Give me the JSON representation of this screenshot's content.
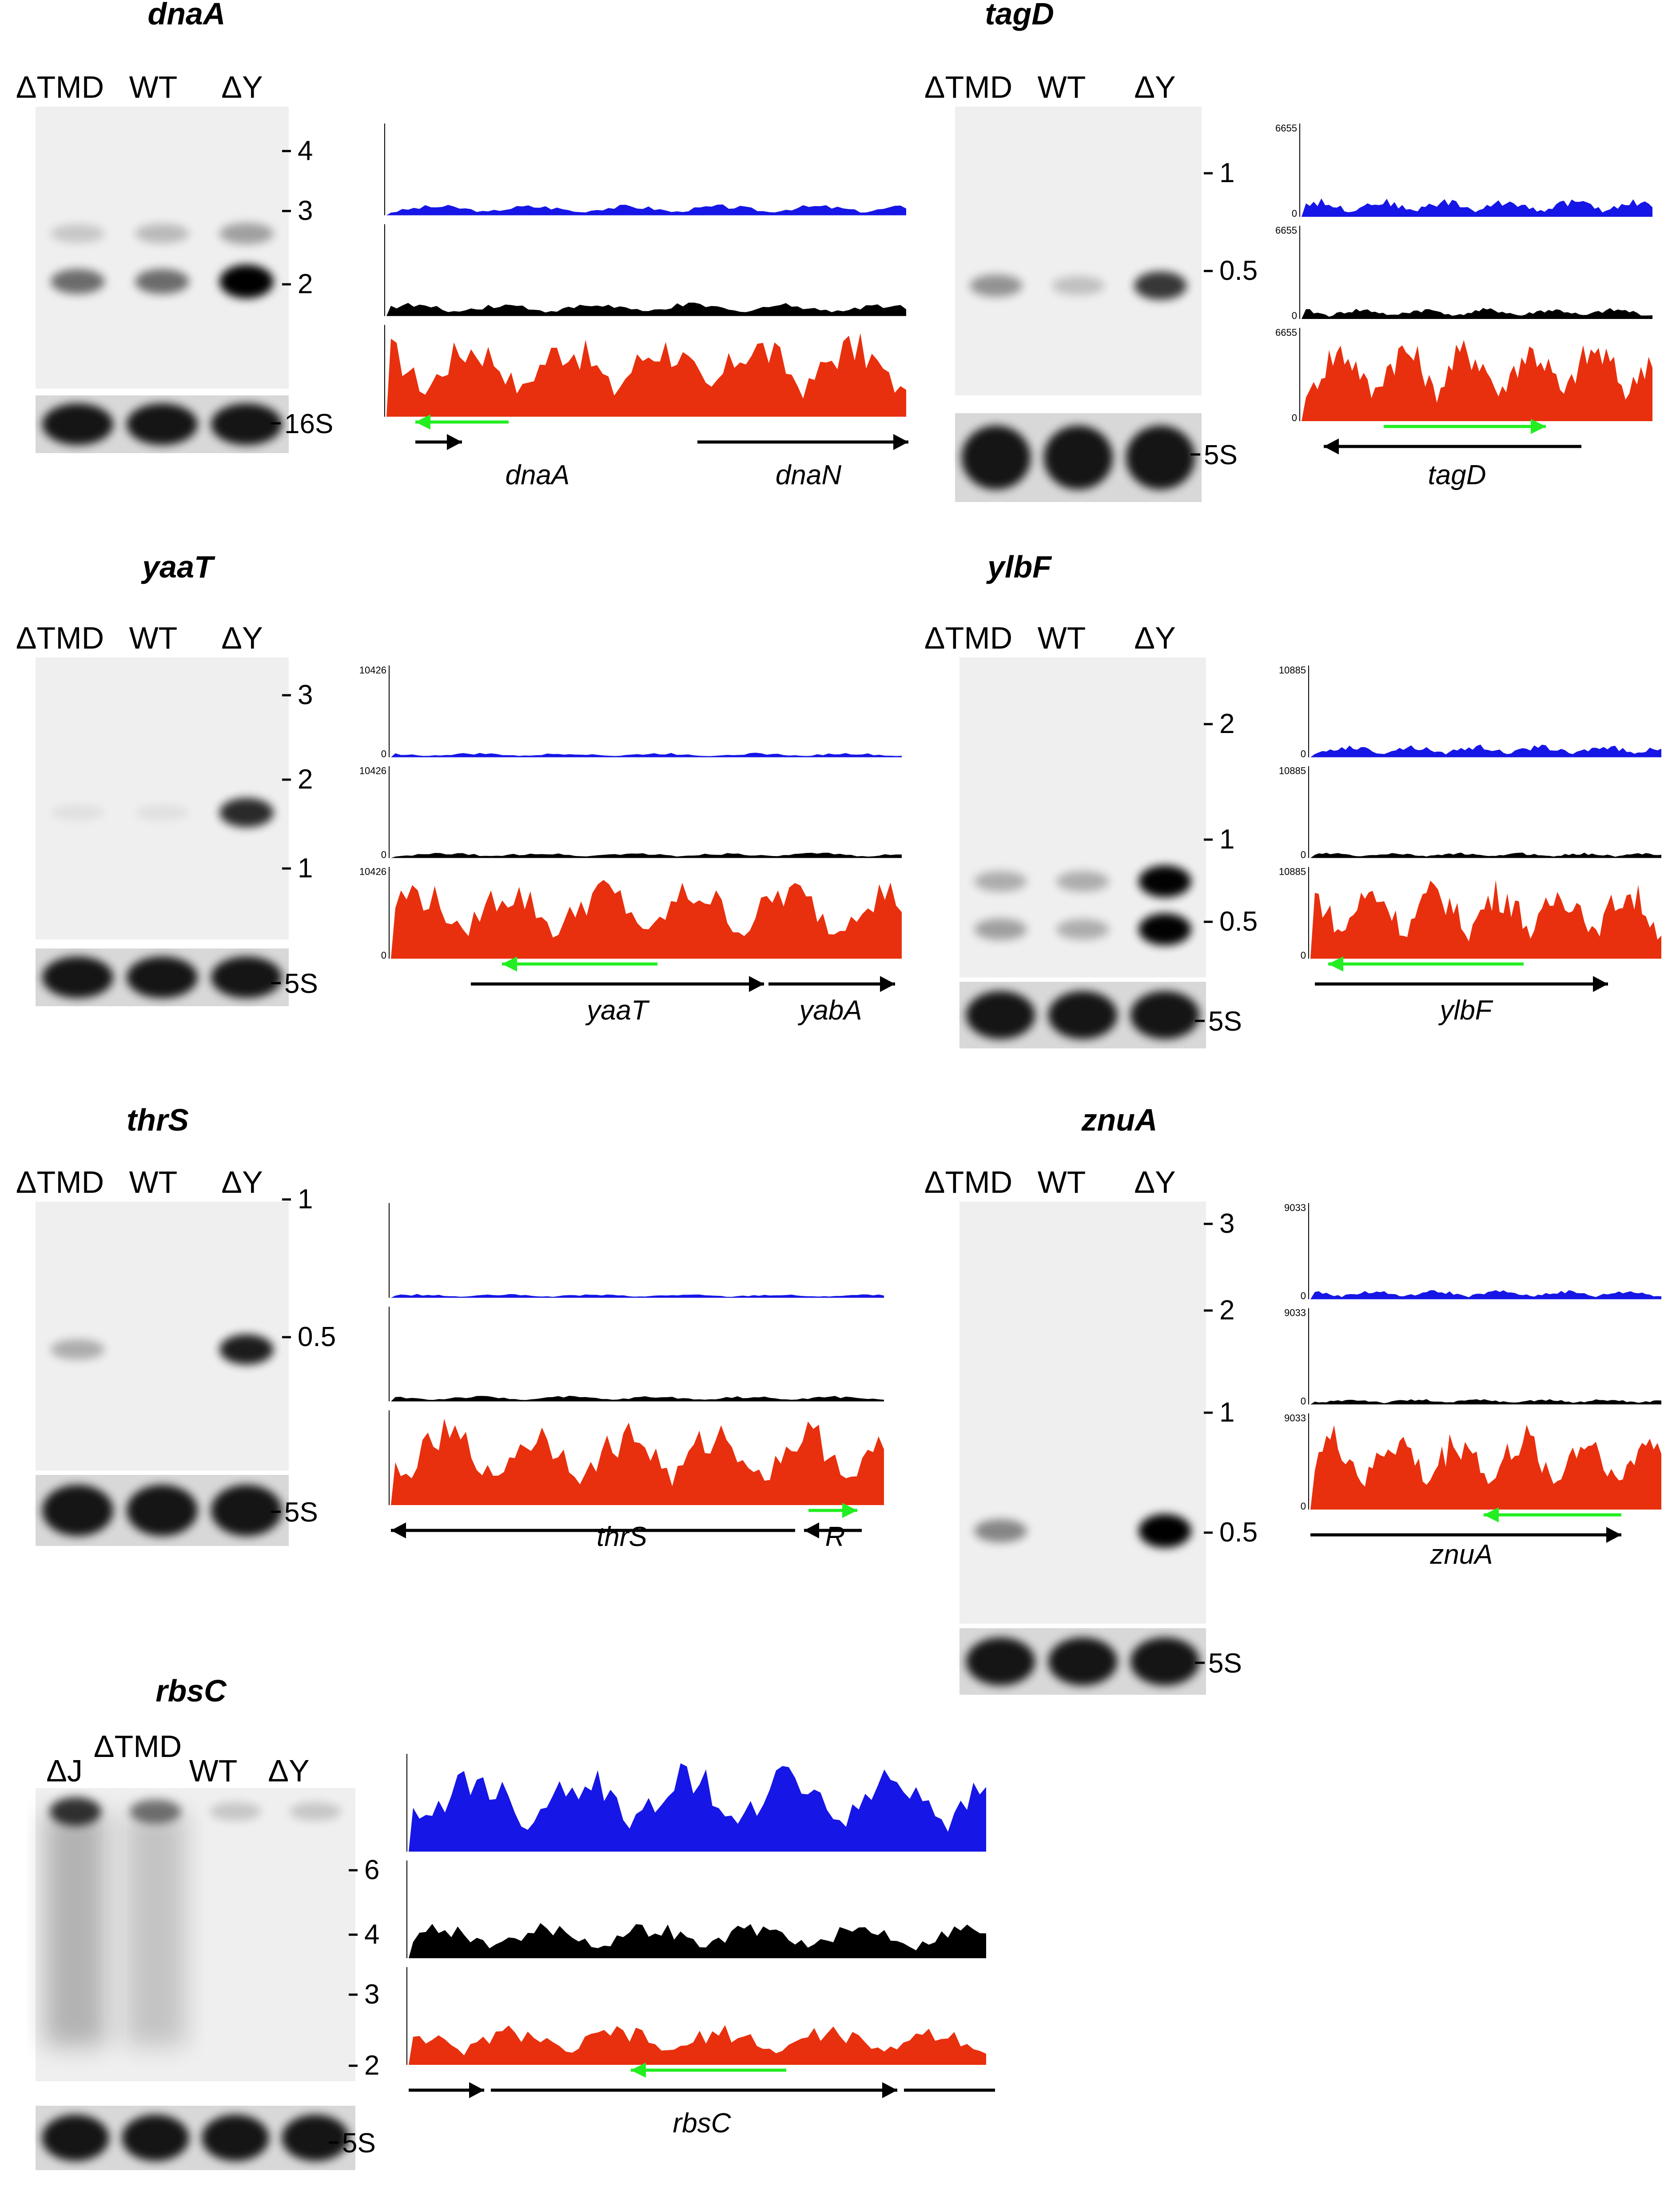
{
  "colors": {
    "track_1": "#1616e6",
    "track_2": "#000000",
    "track_3": "#e8300e",
    "arrow_green": "#22ee22",
    "arrow_black": "#000000"
  },
  "panels": [
    {
      "id": "dnaA",
      "title": "dnaA",
      "lanes": [
        "ΔTMD",
        "WT",
        "ΔY"
      ],
      "markers": [
        "4",
        "3",
        "2"
      ],
      "control": "16S",
      "scale_max": "",
      "scale_zero": "",
      "genes": [
        "dnaA",
        "dnaN"
      ],
      "coverage_max": [
        0.12,
        0.15,
        0.95
      ]
    },
    {
      "id": "tagD",
      "title": "tagD",
      "lanes": [
        "ΔTMD",
        "WT",
        "ΔY"
      ],
      "markers": [
        "1",
        "0.5"
      ],
      "control": "5S",
      "scale_max": "6655",
      "scale_zero": "0",
      "genes": [
        "tagD"
      ],
      "coverage_max": [
        0.2,
        0.12,
        0.95
      ]
    },
    {
      "id": "yaaT",
      "title": "yaaT",
      "lanes": [
        "ΔTMD",
        "WT",
        "ΔY"
      ],
      "markers": [
        "3",
        "2",
        "1"
      ],
      "control": "5S",
      "scale_max": "10426",
      "scale_zero": "0",
      "genes": [
        "yaaT",
        "yabA"
      ],
      "coverage_max": [
        0.05,
        0.06,
        0.92
      ]
    },
    {
      "id": "ylbF",
      "title": "ylbF",
      "lanes": [
        "ΔTMD",
        "WT",
        "ΔY"
      ],
      "markers": [
        "2",
        "1",
        "0.5"
      ],
      "control": "5S",
      "scale_max": "10885",
      "scale_zero": "0",
      "genes": [
        "ylbF"
      ],
      "coverage_max": [
        0.14,
        0.06,
        0.9
      ]
    },
    {
      "id": "thrS",
      "title": "thrS",
      "lanes": [
        "ΔTMD",
        "WT",
        "ΔY"
      ],
      "markers": [
        "1",
        "0.5"
      ],
      "control": "5S",
      "scale_max": "",
      "scale_zero": "",
      "genes": [
        "thrS",
        "R"
      ],
      "coverage_max": [
        0.04,
        0.06,
        0.92
      ]
    },
    {
      "id": "znuA",
      "title": "znuA",
      "lanes": [
        "ΔTMD",
        "WT",
        "ΔY"
      ],
      "markers": [
        "3",
        "2",
        "1",
        "0.5"
      ],
      "control": "5S",
      "scale_max": "9033",
      "scale_zero": "0",
      "genes": [
        "znuA"
      ],
      "coverage_max": [
        0.1,
        0.06,
        0.9
      ]
    },
    {
      "id": "rbsC",
      "title": "rbsC",
      "lanes": [
        "ΔJ",
        "ΔTMD",
        "WT",
        "ΔY"
      ],
      "markers": [
        "6",
        "4",
        "3",
        "2"
      ],
      "control": "5S",
      "scale_max": "",
      "scale_zero": "",
      "genes": [
        "rbsC"
      ],
      "coverage_max": [
        0.95,
        0.38,
        0.42
      ]
    }
  ]
}
